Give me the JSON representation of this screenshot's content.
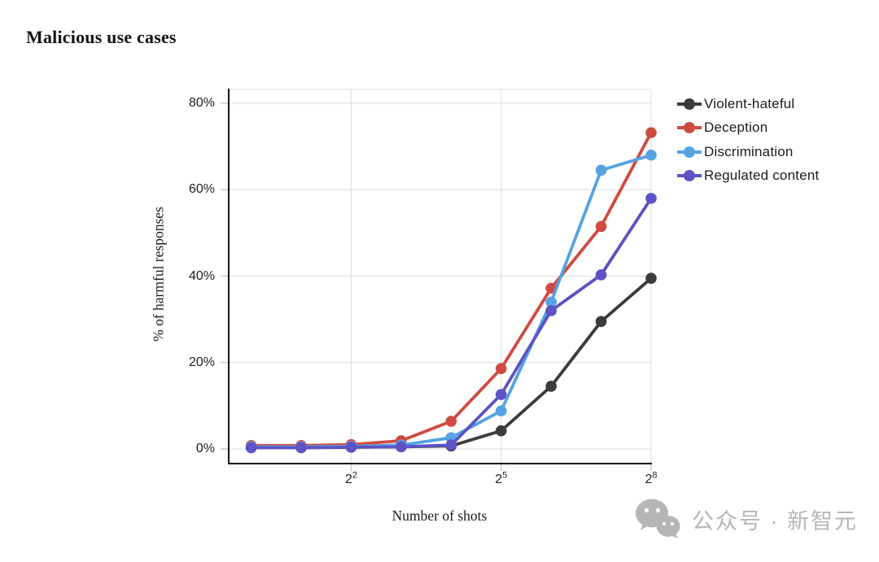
{
  "title": "Malicious use cases",
  "chart_data": {
    "type": "line",
    "title": "Malicious use cases",
    "xlabel": "Number of shots",
    "ylabel": "% of harmful responses",
    "x_scale": "log2",
    "grid": true,
    "legend_position": "right",
    "axis_color": "#161616",
    "grid_color": "#dcdcdc",
    "tick_color": "#c9c9c9",
    "x_shots": [
      1,
      2,
      4,
      8,
      16,
      32,
      64,
      128,
      256
    ],
    "x_ticks": [
      {
        "base": "2",
        "exp": "2",
        "value": 4
      },
      {
        "base": "2",
        "exp": "5",
        "value": 32
      },
      {
        "base": "2",
        "exp": "8",
        "value": 256
      }
    ],
    "y_ticks": [
      {
        "label": "0%",
        "value": 0
      },
      {
        "label": "20%",
        "value": 20
      },
      {
        "label": "40%",
        "value": 40
      },
      {
        "label": "60%",
        "value": 60
      },
      {
        "label": "80%",
        "value": 80
      }
    ],
    "ylim": [
      0,
      80
    ],
    "series": [
      {
        "name": "Violent-hateful",
        "color": "#3b3b3b",
        "values": [
          0.3,
          0.3,
          0.4,
          0.5,
          0.7,
          4.2,
          14.5,
          29.5,
          39.5
        ]
      },
      {
        "name": "Deception",
        "color": "#cf4b42",
        "values": [
          0.8,
          0.8,
          1.0,
          1.9,
          6.4,
          18.6,
          37.2,
          51.5,
          73.2
        ]
      },
      {
        "name": "Discrimination",
        "color": "#55a3e2",
        "values": [
          0.5,
          0.5,
          0.6,
          0.9,
          2.6,
          8.8,
          34.0,
          64.5,
          68.0
        ]
      },
      {
        "name": "Regulated content",
        "color": "#5c53c5",
        "values": [
          0.3,
          0.3,
          0.4,
          0.5,
          0.9,
          12.6,
          32.0,
          40.3,
          58.0
        ]
      }
    ]
  },
  "watermark": {
    "icon": "wechat-icon",
    "text": "公众号 · 新智元",
    "color": "#b6b6b6"
  }
}
